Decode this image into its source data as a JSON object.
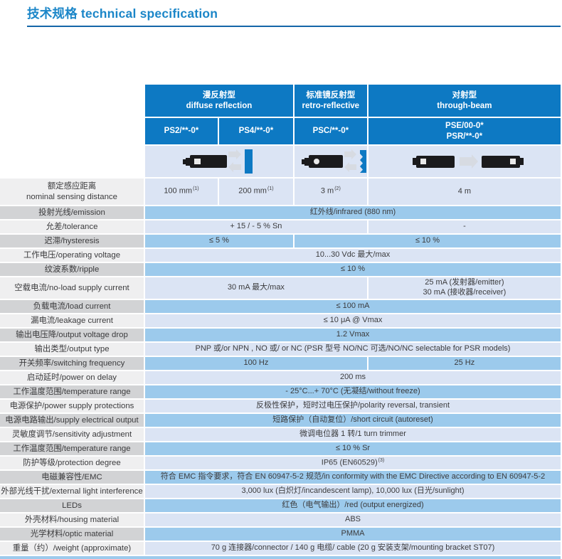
{
  "title": {
    "text": "技术规格 technical  specification"
  },
  "colors": {
    "title_blue": "#1b86c8",
    "rule_blue": "#1466a8",
    "header_blue": "#0d79c3",
    "row_blue_medium": "#9ccaec",
    "row_blue_light": "#dbe4f4",
    "label_gray_dark": "#d2d3d5",
    "label_gray_light": "#efeff0"
  },
  "table": {
    "header_groups": [
      {
        "zh": "漫反射型",
        "en": "diffuse reflection"
      },
      {
        "zh": "标准镜反射型",
        "en": "retro-reflective"
      },
      {
        "zh": "对射型",
        "en": "through-beam"
      }
    ],
    "models": [
      {
        "lines": [
          "PS2/**-0*"
        ]
      },
      {
        "lines": [
          "PS4/**-0*"
        ]
      },
      {
        "lines": [
          "PSC/**-0*"
        ]
      },
      {
        "lines": [
          "PSE/00-0*",
          "PSR/**-0*"
        ]
      }
    ],
    "graphics": {
      "diffuse": "diffuse-sensor-target-graphic",
      "retro": "retro-reflective-sensor-reflector-graphic",
      "through": "through-beam-emitter-receiver-graphic"
    },
    "rows": [
      {
        "label_lines": [
          "额定感应距离",
          "nominal sensing distance"
        ],
        "tone": "light",
        "h": 39,
        "cells": [
          {
            "cols": 1,
            "text": "100 mm",
            "sup": "(1)"
          },
          {
            "cols": 1,
            "text": "200 mm",
            "sup": "(1)"
          },
          {
            "cols": 1,
            "text": "3 m",
            "sup": "(2)"
          },
          {
            "cols": 1,
            "text": "4 m"
          }
        ]
      },
      {
        "label": "投射光线/emission",
        "tone": "medium",
        "cells": [
          {
            "cols": 4,
            "text": "红外线/infrared (880 nm)"
          }
        ]
      },
      {
        "label": "允差/tolerance",
        "tone": "light",
        "cells": [
          {
            "cols": 3,
            "text": "+ 15 / - 5 % Sn"
          },
          {
            "cols": 1,
            "text": "-"
          }
        ]
      },
      {
        "label": "迟滞/hysteresis",
        "tone": "medium",
        "cells": [
          {
            "cols": 2,
            "text": "≤ 5 %"
          },
          {
            "cols": 2,
            "text": "≤ 10 %"
          }
        ]
      },
      {
        "label": "工作电压/operating voltage",
        "tone": "light",
        "cells": [
          {
            "cols": 4,
            "text": "10...30 Vdc 最大/max"
          }
        ]
      },
      {
        "label": "纹波系数/ripple",
        "tone": "medium",
        "cells": [
          {
            "cols": 4,
            "text": "≤ 10 %"
          }
        ]
      },
      {
        "label": "空载电流/no-load supply current",
        "tone": "light",
        "h": 32,
        "cells": [
          {
            "cols": 3,
            "text": "30 mA 最大/max"
          },
          {
            "cols": 1,
            "lines": [
              "25 mA (发射器/emitter)",
              "30 mA (接收器/receiver)"
            ]
          }
        ]
      },
      {
        "label": "负载电流/load current",
        "tone": "medium",
        "cells": [
          {
            "cols": 4,
            "text": "≤ 100 mA"
          }
        ]
      },
      {
        "label": "漏电流/leakage current",
        "tone": "light",
        "cells": [
          {
            "cols": 4,
            "text": "≤ 10 μA @ Vmax"
          }
        ]
      },
      {
        "label": "输出电压降/output voltage drop",
        "tone": "medium",
        "cells": [
          {
            "cols": 4,
            "text": "1.2 Vmax"
          }
        ]
      },
      {
        "label": "输出类型/output type",
        "tone": "light",
        "cells": [
          {
            "cols": 4,
            "text": "PNP 或/or NPN , NO 或/ or NC (PSR 型号 NO/NC 可选/NO/NC selectable for PSR models)"
          }
        ]
      },
      {
        "label": "开关频率/switching frequency",
        "tone": "medium",
        "cells": [
          {
            "cols": 3,
            "text": "100 Hz"
          },
          {
            "cols": 1,
            "text": "25 Hz"
          }
        ]
      },
      {
        "label": "启动延时/power on delay",
        "tone": "light",
        "cells": [
          {
            "cols": 4,
            "text": "200 ms"
          }
        ]
      },
      {
        "label": "工作温度范围/temperature range",
        "tone": "medium",
        "cells": [
          {
            "cols": 4,
            "text": "- 25°C...+ 70°C (无凝结/without freeze)"
          }
        ]
      },
      {
        "label": "电源保护/power supply protections",
        "tone": "light",
        "cells": [
          {
            "cols": 4,
            "text": "反极性保护，短时过电压保护/polarity reversal, transient"
          }
        ]
      },
      {
        "label": "电源电路输出/supply electrical output",
        "tone": "medium",
        "cells": [
          {
            "cols": 4,
            "text": "短路保护（自动复位）/short circuit (autoreset)"
          }
        ]
      },
      {
        "label": "灵敏度调节/sensitivity adjustment",
        "tone": "light",
        "cells": [
          {
            "cols": 4,
            "text": "微调电位器 1 转/1 turn trimmer"
          }
        ]
      },
      {
        "label": "工作温度范围/temperature range",
        "tone": "medium",
        "cells": [
          {
            "cols": 4,
            "text": "≤ 10 % Sr"
          }
        ]
      },
      {
        "label": "防护等级/protection degree",
        "tone": "light",
        "cells": [
          {
            "cols": 4,
            "text": "IP65 (EN60529)",
            "sup": "(3)"
          }
        ]
      },
      {
        "label": "电磁兼容性/EMC",
        "tone": "medium",
        "cells": [
          {
            "cols": 4,
            "text": "符合 EMC 指令要求，符合 EN 60947-5-2 规范/in conformity with the EMC Directive according to EN 60947-5-2"
          }
        ]
      },
      {
        "label": "外部光线干扰/external light interference",
        "tone": "light",
        "cells": [
          {
            "cols": 4,
            "text": "3,000 lux (白炽灯/incandescent lamp), 10,000 lux (日光/sunlight)"
          }
        ]
      },
      {
        "label": "LEDs",
        "tone": "medium",
        "cells": [
          {
            "cols": 4,
            "text": "红色（电气输出）/red (output energized)"
          }
        ]
      },
      {
        "label": "外壳材料/housing material",
        "tone": "light",
        "cells": [
          {
            "cols": 4,
            "text": "ABS"
          }
        ]
      },
      {
        "label": "光学材料/optic material",
        "tone": "medium",
        "cells": [
          {
            "cols": 4,
            "text": "PMMA"
          }
        ]
      },
      {
        "label": "重量（约）/weight (approximate)",
        "tone": "light",
        "cells": [
          {
            "cols": 4,
            "text": "70 g 连接器/connector / 140 g 电缆/ cable (20 g 安装支架/mounting bracket ST07)"
          }
        ]
      }
    ]
  }
}
